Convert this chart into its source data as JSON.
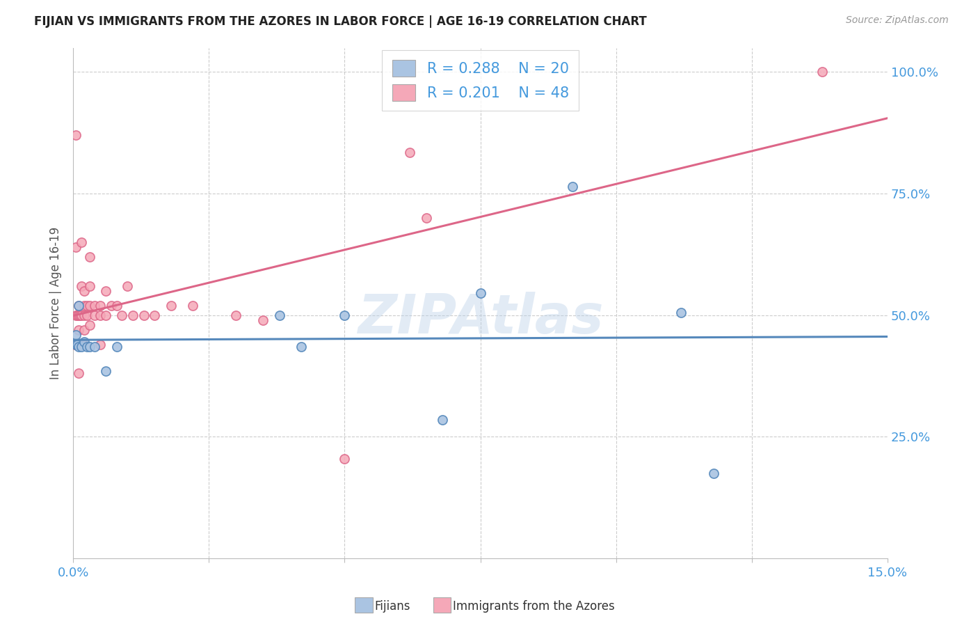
{
  "title": "FIJIAN VS IMMIGRANTS FROM THE AZORES IN LABOR FORCE | AGE 16-19 CORRELATION CHART",
  "source": "Source: ZipAtlas.com",
  "ylabel": "In Labor Force | Age 16-19",
  "xlim": [
    0.0,
    0.15
  ],
  "ylim": [
    0.0,
    1.05
  ],
  "fijian_color": "#aac4e2",
  "azores_color": "#f5a8b8",
  "fijian_line_color": "#5588bb",
  "azores_line_color": "#dd6688",
  "legend_text_color": "#4499dd",
  "fijian_R": 0.288,
  "fijian_N": 20,
  "azores_R": 0.201,
  "azores_N": 48,
  "fijian_x": [
    0.0005,
    0.0005,
    0.0008,
    0.001,
    0.001,
    0.0015,
    0.002,
    0.0025,
    0.003,
    0.004,
    0.006,
    0.008,
    0.038,
    0.042,
    0.05,
    0.068,
    0.075,
    0.092,
    0.112,
    0.118
  ],
  "fijian_y": [
    0.44,
    0.46,
    0.44,
    0.435,
    0.52,
    0.435,
    0.445,
    0.435,
    0.435,
    0.435,
    0.385,
    0.435,
    0.5,
    0.435,
    0.5,
    0.285,
    0.545,
    0.765,
    0.505,
    0.175
  ],
  "azores_x": [
    0.0003,
    0.0005,
    0.0005,
    0.0005,
    0.0005,
    0.0008,
    0.001,
    0.001,
    0.001,
    0.001,
    0.001,
    0.0012,
    0.0015,
    0.0015,
    0.0015,
    0.002,
    0.002,
    0.002,
    0.002,
    0.002,
    0.0025,
    0.0025,
    0.003,
    0.003,
    0.003,
    0.003,
    0.004,
    0.004,
    0.005,
    0.005,
    0.005,
    0.006,
    0.006,
    0.007,
    0.008,
    0.009,
    0.01,
    0.011,
    0.013,
    0.015,
    0.018,
    0.022,
    0.03,
    0.035,
    0.05,
    0.062,
    0.065,
    0.138
  ],
  "azores_y": [
    0.44,
    0.87,
    0.64,
    0.5,
    0.44,
    0.5,
    0.52,
    0.5,
    0.47,
    0.44,
    0.38,
    0.5,
    0.65,
    0.56,
    0.5,
    0.55,
    0.52,
    0.5,
    0.47,
    0.44,
    0.52,
    0.5,
    0.62,
    0.56,
    0.52,
    0.48,
    0.52,
    0.5,
    0.52,
    0.5,
    0.44,
    0.55,
    0.5,
    0.52,
    0.52,
    0.5,
    0.56,
    0.5,
    0.5,
    0.5,
    0.52,
    0.52,
    0.5,
    0.49,
    0.205,
    0.835,
    0.7,
    1.0
  ]
}
